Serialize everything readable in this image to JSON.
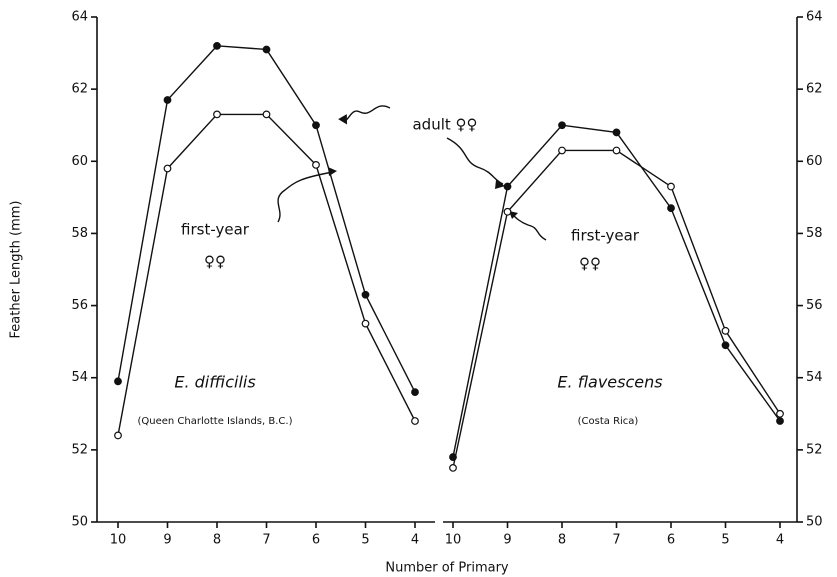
{
  "chart_data": [
    {
      "type": "line",
      "ylabel": "Feather Length (mm)",
      "xlabel": "Number of Primary",
      "categories": [
        "10",
        "9",
        "8",
        "7",
        "6",
        "5",
        "4"
      ],
      "ylim": [
        50,
        64
      ],
      "yticks": [
        50,
        52,
        54,
        56,
        58,
        60,
        62,
        64
      ],
      "series": [
        {
          "color": "#111111",
          "marker": "filled",
          "values": [
            53.9,
            61.7,
            63.2,
            63.1,
            61.0,
            56.3,
            53.6
          ]
        },
        {
          "color": "#111111",
          "marker": "open",
          "values": [
            52.4,
            59.8,
            61.3,
            61.3,
            59.9,
            55.5,
            52.8
          ]
        }
      ],
      "annotations": [
        "adult ♀♀",
        "first-year",
        "♀♀",
        "E. difficilis",
        "(Queen Charlotte Islands, B.C.)"
      ]
    },
    {
      "type": "line",
      "categories": [
        "10",
        "9",
        "8",
        "7",
        "6",
        "5",
        "4"
      ],
      "ylim": [
        50,
        64
      ],
      "yticks": [
        50,
        52,
        54,
        56,
        58,
        60,
        62,
        64
      ],
      "series": [
        {
          "color": "#111111",
          "marker": "filled",
          "values": [
            51.8,
            59.3,
            61.0,
            60.8,
            58.7,
            54.9,
            52.8
          ]
        },
        {
          "color": "#111111",
          "marker": "open",
          "values": [
            51.5,
            58.6,
            60.3,
            60.3,
            59.3,
            55.3,
            53.0
          ]
        }
      ],
      "annotations": [
        "first-year",
        "♀♀",
        "E. flavescens",
        "(Costa Rica)"
      ]
    }
  ]
}
